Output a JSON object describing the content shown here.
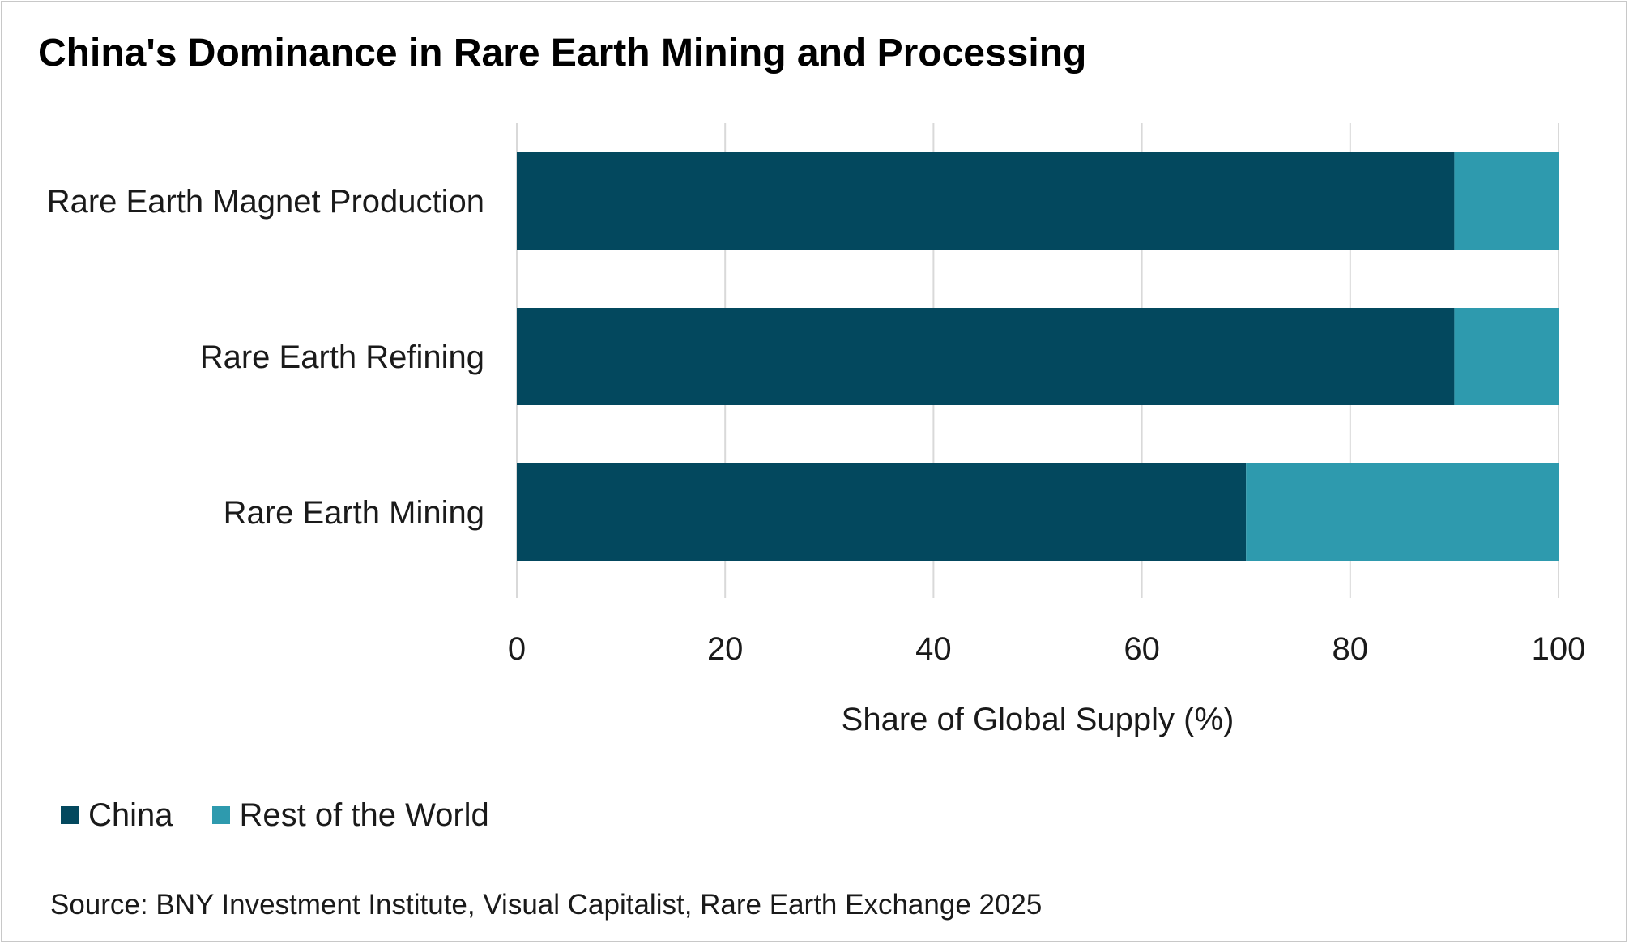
{
  "chart_data": {
    "type": "bar",
    "orientation": "horizontal",
    "stacked": true,
    "title": "China's Dominance in Rare Earth Mining and Processing",
    "categories": [
      "Rare Earth Magnet Production",
      "Rare Earth Refining",
      "Rare Earth Mining"
    ],
    "series": [
      {
        "name": "China",
        "values": [
          90,
          90,
          70
        ],
        "color": "#03485e"
      },
      {
        "name": "Rest of the World",
        "values": [
          10,
          10,
          30
        ],
        "color": "#2e9aae"
      }
    ],
    "xlabel": "Share of Global Supply (%)",
    "ylabel": "",
    "xlim": [
      0,
      100
    ],
    "xticks": [
      "0",
      "20",
      "40",
      "60",
      "80",
      "100"
    ],
    "grid": true,
    "legend_position": "bottom-left",
    "source": "Source: BNY Investment Institute, Visual Capitalist, Rare Earth Exchange 2025"
  }
}
